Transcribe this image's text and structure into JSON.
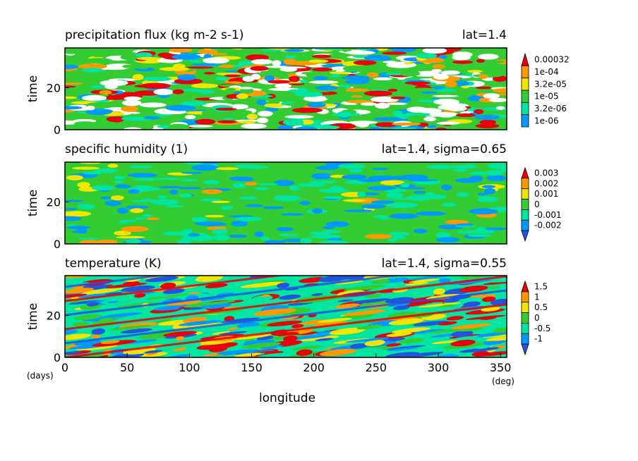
{
  "chart_data": [
    {
      "type": "heatmap",
      "title": "precipitation flux (kg m-2 s-1)",
      "location": "lat=1.4",
      "ylabel": "time",
      "xlim": [
        0,
        355
      ],
      "ylim": [
        0,
        39
      ],
      "yticks": [
        0,
        20
      ],
      "colorbar": {
        "labels": [
          "0.00032",
          "1e-04",
          "3.2e-05",
          "1e-05",
          "3.2e-06",
          "1e-06"
        ],
        "colors": [
          "#e8000b",
          "#ff9900",
          "#f2e600",
          "#33cc33",
          "#00e5a0",
          "#0099ff"
        ]
      }
    },
    {
      "type": "heatmap",
      "title": "specific humidity (1)",
      "location": "lat=1.4, sigma=0.65",
      "ylabel": "time",
      "xlim": [
        0,
        355
      ],
      "ylim": [
        0,
        39
      ],
      "yticks": [
        0,
        20
      ],
      "colorbar": {
        "labels": [
          "0.003",
          "0.002",
          "0.001",
          "0",
          "-0.001",
          "-0.002"
        ],
        "colors": [
          "#e8000b",
          "#ff9900",
          "#f2e600",
          "#33cc33",
          "#00e5a0",
          "#0099ff",
          "#2255dd"
        ]
      }
    },
    {
      "type": "heatmap",
      "title": "temperature (K)",
      "location": "lat=1.4, sigma=0.55",
      "ylabel": "time",
      "xlabel": "longitude",
      "xlim": [
        0,
        355
      ],
      "ylim": [
        0,
        39
      ],
      "yticks": [
        0,
        20
      ],
      "xticks": [
        0,
        50,
        100,
        150,
        200,
        250,
        300,
        350
      ],
      "x_unit": "(deg)",
      "y_unit": "(days)",
      "colorbar": {
        "labels": [
          "1.5",
          "1",
          "0.5",
          "0",
          "-0.5",
          "-1"
        ],
        "colors": [
          "#e8000b",
          "#ff9900",
          "#f2e600",
          "#33cc33",
          "#00e5a0",
          "#0099ff",
          "#2255dd"
        ]
      }
    }
  ]
}
